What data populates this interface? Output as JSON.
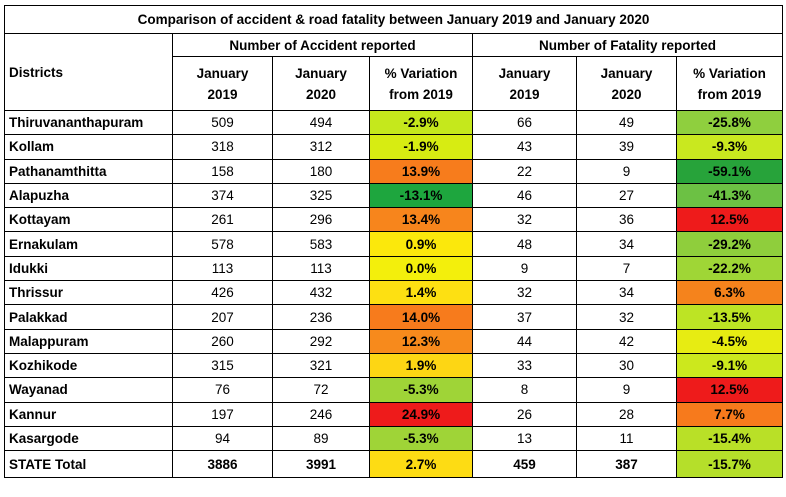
{
  "title": "Comparison of accident & road fatality between January 2019 and January 2020",
  "headers": {
    "districts": "Districts",
    "group_accident": "Number of Accident reported",
    "group_fatality": "Number of Fatality reported",
    "jan2019_line1": "January",
    "jan2019_line2": "2019",
    "jan2020_line1": "January",
    "jan2020_line2": "2020",
    "var_line1": "% Variation",
    "var_line2": "from 2019"
  },
  "chart_data": {
    "type": "table",
    "title": "Comparison of accident & road fatality between January 2019 and January 2020",
    "columns": [
      "Districts",
      "Accidents January 2019",
      "Accidents January 2020",
      "Accidents % Variation from 2019",
      "Fatalities January 2019",
      "Fatalities January 2020",
      "Fatalities % Variation from 2019"
    ],
    "rows": [
      {
        "district": "Thiruvananthapuram",
        "acc2019": "509",
        "acc2020": "494",
        "accVar": "-2.9%",
        "fat2019": "66",
        "fat2020": "49",
        "fatVar": "-25.8%",
        "accColor": "#c5e81c",
        "fatColor": "#8fcf3e"
      },
      {
        "district": "Kollam",
        "acc2019": "318",
        "acc2020": "312",
        "accVar": "-1.9%",
        "fat2019": "43",
        "fat2020": "39",
        "fatVar": "-9.3%",
        "accColor": "#d7ec12",
        "fatColor": "#c9e81f"
      },
      {
        "district": "Pathanamthitta",
        "acc2019": "158",
        "acc2020": "180",
        "accVar": "13.9%",
        "fat2019": "22",
        "fat2020": "9",
        "fatVar": "-59.1%",
        "accColor": "#f77c1c",
        "fatColor": "#27a33a"
      },
      {
        "district": "Alapuzha",
        "acc2019": "374",
        "acc2020": "325",
        "accVar": "-13.1%",
        "fat2019": "46",
        "fat2020": "27",
        "fatVar": "-41.3%",
        "accColor": "#1ea63e",
        "fatColor": "#6cc144"
      },
      {
        "district": "Kottayam",
        "acc2019": "261",
        "acc2020": "296",
        "accVar": "13.4%",
        "fat2019": "32",
        "fat2020": "36",
        "fatVar": "12.5%",
        "accColor": "#f7851c",
        "fatColor": "#ee1b1b"
      },
      {
        "district": "Ernakulam",
        "acc2019": "578",
        "acc2020": "583",
        "accVar": "0.9%",
        "fat2019": "48",
        "fat2020": "34",
        "fatVar": "-29.2%",
        "accColor": "#fbe80c",
        "fatColor": "#8fce3c"
      },
      {
        "district": "Idukki",
        "acc2019": "113",
        "acc2020": "113",
        "accVar": "0.0%",
        "fat2019": "9",
        "fat2020": "7",
        "fatVar": "-22.2%",
        "accColor": "#f3ef0c",
        "fatColor": "#9fd636"
      },
      {
        "district": "Thrissur",
        "acc2019": "426",
        "acc2020": "432",
        "accVar": "1.4%",
        "fat2019": "32",
        "fat2020": "34",
        "fatVar": "6.3%",
        "accColor": "#fde012",
        "fatColor": "#f5831c"
      },
      {
        "district": "Palakkad",
        "acc2019": "207",
        "acc2020": "236",
        "accVar": "14.0%",
        "fat2019": "37",
        "fat2020": "32",
        "fatVar": "-13.5%",
        "accColor": "#f77b1c",
        "fatColor": "#bde424"
      },
      {
        "district": "Malappuram",
        "acc2019": "260",
        "acc2020": "292",
        "accVar": "12.3%",
        "fat2019": "44",
        "fat2020": "42",
        "fatVar": "-4.5%",
        "accColor": "#f78a1c",
        "fatColor": "#e7ec12"
      },
      {
        "district": "Kozhikode",
        "acc2019": "315",
        "acc2020": "321",
        "accVar": "1.9%",
        "fat2019": "33",
        "fat2020": "30",
        "fatVar": "-9.1%",
        "accColor": "#fdd614",
        "fatColor": "#cce81d"
      },
      {
        "district": "Wayanad",
        "acc2019": "76",
        "acc2020": "72",
        "accVar": "-5.3%",
        "fat2019": "8",
        "fat2020": "9",
        "fatVar": "12.5%",
        "accColor": "#9fd437",
        "fatColor": "#ee1b1b"
      },
      {
        "district": "Kannur",
        "acc2019": "197",
        "acc2020": "246",
        "accVar": "24.9%",
        "fat2019": "26",
        "fat2020": "28",
        "fatVar": "7.7%",
        "accColor": "#ee1b1b",
        "fatColor": "#f77a1c"
      },
      {
        "district": "Kasargode",
        "acc2019": "94",
        "acc2020": "89",
        "accVar": "-5.3%",
        "fat2019": "13",
        "fat2020": "11",
        "fatVar": "-15.4%",
        "accColor": "#9fd437",
        "fatColor": "#b9e027"
      }
    ],
    "total": {
      "district": "STATE Total",
      "acc2019": "3886",
      "acc2020": "3991",
      "accVar": "2.7%",
      "fat2019": "459",
      "fat2020": "387",
      "fatVar": "-15.7%",
      "accColor": "#fddc14",
      "fatColor": "#b5df2a"
    }
  }
}
